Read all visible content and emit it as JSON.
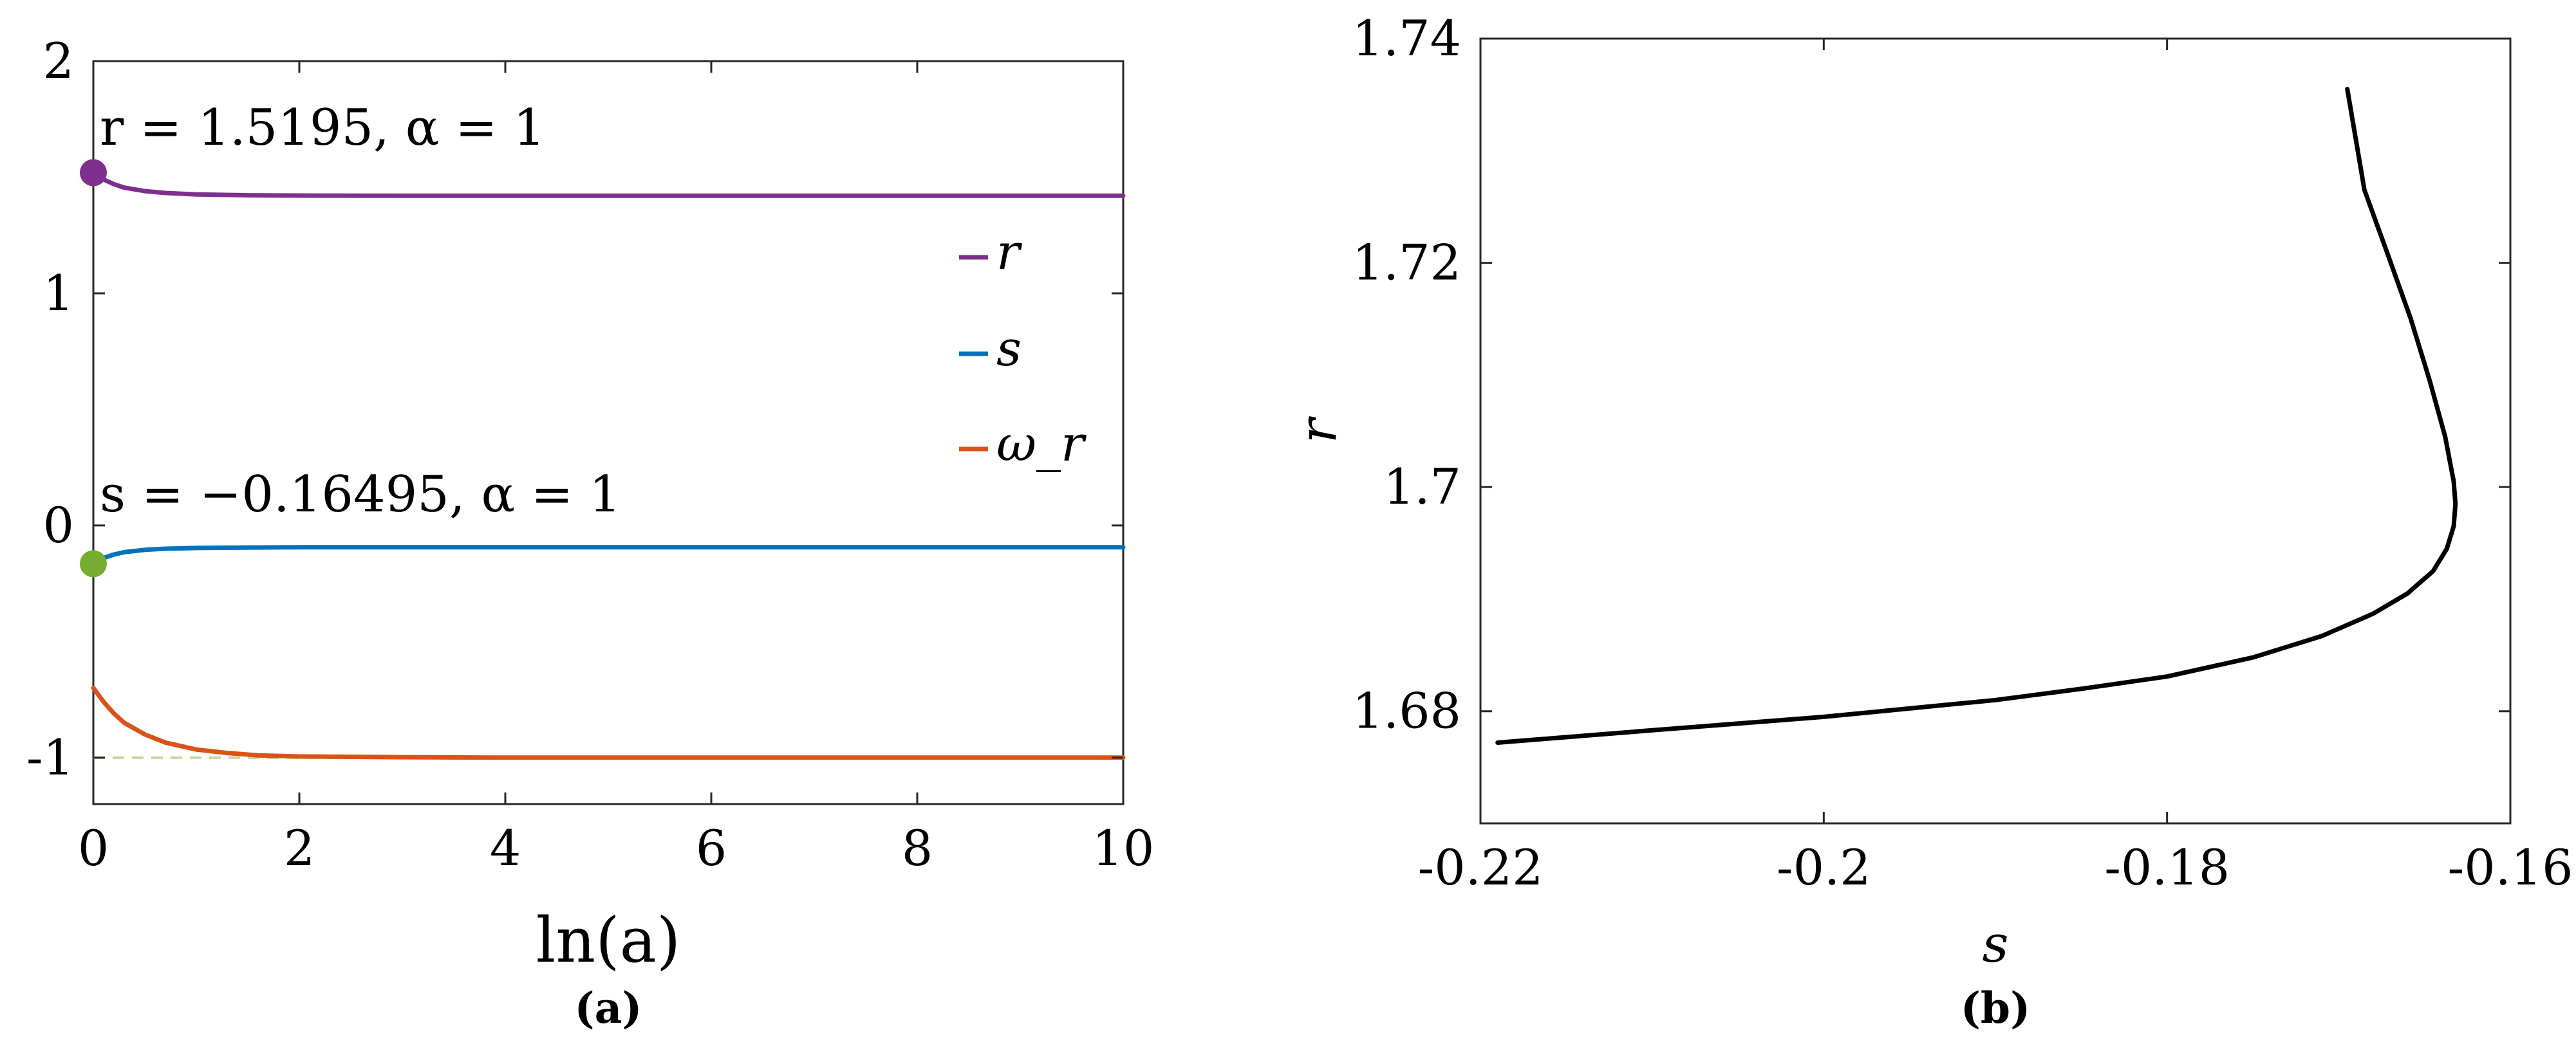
{
  "chart_data": [
    {
      "type": "line",
      "panel_label": "(a)",
      "xlabel": "ln(a)",
      "ylabel": "",
      "xlim": [
        0,
        10
      ],
      "ylim": [
        -1.2,
        2
      ],
      "xticks": [
        0,
        2,
        4,
        6,
        8,
        10
      ],
      "xtick_labels": [
        "0",
        "2",
        "4",
        "6",
        "8",
        "10"
      ],
      "yticks": [
        -1,
        0,
        1,
        2
      ],
      "ytick_labels": [
        "-1",
        "0",
        "1",
        "2"
      ],
      "legend": {
        "placement": "right",
        "entries": [
          "r",
          "s",
          "ω_r"
        ]
      },
      "annotations": [
        {
          "text": "r = 1.5195, α = 1",
          "x": 0,
          "y": 1.5195
        },
        {
          "text": "s = −0.16495, α = 1",
          "x": 0,
          "y": -0.16495
        }
      ],
      "reference_line": {
        "y": -1,
        "color": "#c8d8a0",
        "style": "dashed"
      },
      "markers": [
        {
          "x": 0,
          "y": 1.5195,
          "color": "#7e2f8e"
        },
        {
          "x": 0,
          "y": -0.16495,
          "color": "#77ac30"
        }
      ],
      "series": [
        {
          "name": "r",
          "color": "#7e2f8e",
          "x": [
            0,
            0.1,
            0.2,
            0.3,
            0.5,
            0.7,
            1,
            1.5,
            2,
            3,
            4,
            6,
            8,
            10
          ],
          "y": [
            1.5195,
            1.49,
            1.47,
            1.455,
            1.44,
            1.432,
            1.426,
            1.422,
            1.421,
            1.42,
            1.42,
            1.42,
            1.42,
            1.42
          ]
        },
        {
          "name": "s",
          "color": "#0072bd",
          "x": [
            0,
            0.1,
            0.2,
            0.3,
            0.5,
            0.7,
            1,
            1.5,
            2,
            3,
            4,
            6,
            8,
            10
          ],
          "y": [
            -0.16495,
            -0.14,
            -0.125,
            -0.115,
            -0.105,
            -0.1,
            -0.097,
            -0.095,
            -0.094,
            -0.094,
            -0.094,
            -0.094,
            -0.094,
            -0.094
          ]
        },
        {
          "name": "ω_r",
          "color": "#d95319",
          "x": [
            0,
            0.1,
            0.2,
            0.3,
            0.5,
            0.7,
            1,
            1.3,
            1.6,
            2,
            3,
            4,
            6,
            8,
            10
          ],
          "y": [
            -0.7,
            -0.76,
            -0.81,
            -0.85,
            -0.9,
            -0.935,
            -0.965,
            -0.98,
            -0.99,
            -0.995,
            -0.998,
            -1.0,
            -1.0,
            -1.0,
            -1.0
          ]
        }
      ]
    },
    {
      "type": "line",
      "panel_label": "(b)",
      "xlabel": "s",
      "ylabel": "r",
      "xlim": [
        -0.22,
        -0.16
      ],
      "ylim": [
        1.67,
        1.74
      ],
      "xticks": [
        -0.22,
        -0.2,
        -0.18,
        -0.16
      ],
      "xtick_labels": [
        "-0.22",
        "-0.2",
        "-0.18",
        "-0.16"
      ],
      "yticks": [
        1.68,
        1.7,
        1.72,
        1.74
      ],
      "ytick_labels": [
        "1.68",
        "1.7",
        "1.72",
        "1.74"
      ],
      "series": [
        {
          "color": "#000000",
          "x": [
            -0.219,
            -0.21,
            -0.2,
            -0.19,
            -0.185,
            -0.18,
            -0.175,
            -0.171,
            -0.168,
            -0.166,
            -0.1645,
            -0.1637,
            -0.1633,
            -0.1632,
            -0.1633,
            -0.1638,
            -0.1647,
            -0.1658,
            -0.1672,
            -0.1685,
            -0.1695
          ],
          "y": [
            1.6772,
            1.6783,
            1.6795,
            1.681,
            1.682,
            1.6831,
            1.6848,
            1.6867,
            1.6887,
            1.6905,
            1.6925,
            1.6945,
            1.6965,
            1.6985,
            1.7005,
            1.7045,
            1.7095,
            1.715,
            1.721,
            1.7265,
            1.7355
          ]
        }
      ]
    }
  ]
}
